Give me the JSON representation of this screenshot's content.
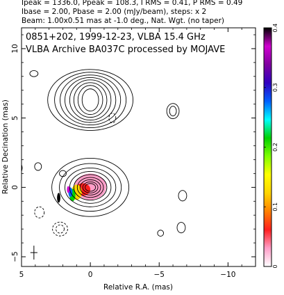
{
  "header": {
    "line1": "Ipeak = 1336.0, Ppeak = 108.3, I RMS = 0.41, P RMS = 0.49",
    "line2": "Ibase = 2.00, Pbase = 2.00 (mJy/beam), steps: x 2",
    "line3": "Beam: 1.00x0.51 mas at -1.0 deg., Nat. Wgt. (no taper)"
  },
  "chart_data": {
    "type": "contour",
    "title": "0851+202, 1999-12-23, VLBA 15.4 GHz",
    "subtitle": "VLBA Archive BA037C processed by MOJAVE",
    "xlabel": "Relative R.A. (mas)",
    "ylabel": "Relative Decination (mas)",
    "xlim": [
      5,
      -12
    ],
    "ylim": [
      -5.7,
      11.5
    ],
    "x_ticks": [
      5,
      0,
      -5,
      -10
    ],
    "y_ticks": [
      -5,
      0,
      5,
      10
    ],
    "x_tick_labels": [
      "5",
      "0",
      "−5",
      "−10"
    ],
    "y_tick_labels": [
      "−5",
      "0",
      "5",
      "10"
    ],
    "colorbar": {
      "range": [
        0,
        0.4
      ],
      "ticks": [
        0,
        0.1,
        0.2,
        0.3,
        0.4
      ],
      "tick_labels": [
        "0",
        "0.1",
        "0.2",
        "0.3",
        "0.4"
      ],
      "stops": [
        "#ffffff",
        "#ff9ec8",
        "#ff1f1f",
        "#ff8000",
        "#ffd400",
        "#ffff00",
        "#7fff00",
        "#00d000",
        "#00ffff",
        "#0060ff",
        "#3000c0",
        "#8000a0",
        "#d000d0",
        "#000000"
      ]
    },
    "components": [
      {
        "name": "core",
        "x": 0.0,
        "y": 0.0,
        "contours": [
          {
            "rx": 0.38,
            "ry": 0.28
          },
          {
            "rx": 0.55,
            "ry": 0.4
          },
          {
            "rx": 0.75,
            "ry": 0.55
          },
          {
            "rx": 0.95,
            "ry": 0.72
          },
          {
            "rx": 1.2,
            "ry": 0.92
          },
          {
            "rx": 1.5,
            "ry": 1.15
          },
          {
            "rx": 1.85,
            "ry": 1.4
          },
          {
            "rx": 2.25,
            "ry": 1.72
          },
          {
            "rx": 2.8,
            "ry": 2.1
          }
        ]
      },
      {
        "name": "northern-feature",
        "x": 0.0,
        "y": 6.3,
        "contours": [
          {
            "rx": 0.6,
            "ry": 0.8
          },
          {
            "rx": 0.9,
            "ry": 1.05
          },
          {
            "rx": 1.2,
            "ry": 1.25
          },
          {
            "rx": 1.5,
            "ry": 1.45
          },
          {
            "rx": 1.85,
            "ry": 1.62
          },
          {
            "rx": 2.2,
            "ry": 1.8
          },
          {
            "rx": 2.6,
            "ry": 2.0
          },
          {
            "rx": 3.1,
            "ry": 2.2
          }
        ]
      }
    ],
    "polarization": [
      {
        "x": 0.0,
        "y": 0.05,
        "rx": 1.15,
        "ry": 0.95,
        "value": 0.02
      },
      {
        "x": 0.15,
        "y": 0.0,
        "rx": 0.75,
        "ry": 0.62,
        "value": 0.04
      },
      {
        "x": 0.55,
        "y": -0.15,
        "rx": 0.55,
        "ry": 0.45,
        "value": 0.06
      },
      {
        "x": 1.0,
        "y": -0.35,
        "rx": 0.38,
        "ry": 0.55,
        "value": 0.13
      },
      {
        "x": 1.3,
        "y": -0.55,
        "rx": 0.22,
        "ry": 0.45,
        "value": 0.2
      },
      {
        "x": 1.45,
        "y": -0.35,
        "rx": 0.15,
        "ry": 0.35,
        "value": 0.27
      },
      {
        "x": 1.6,
        "y": -0.15,
        "rx": 0.1,
        "ry": 0.25,
        "value": 0.36
      },
      {
        "x": 2.3,
        "y": -0.75,
        "rx": 0.12,
        "ry": 0.35,
        "value": 0.4
      }
    ],
    "negative_contours": [
      {
        "x": -1.6,
        "y": 5.0,
        "rx": 0.25,
        "ry": 0.35
      },
      {
        "x": 2.2,
        "y": -3.0,
        "rx": 0.3,
        "ry": 0.3
      },
      {
        "x": 2.2,
        "y": -3.0,
        "rx": 0.55,
        "ry": 0.5
      },
      {
        "x": 3.7,
        "y": -1.8,
        "rx": 0.35,
        "ry": 0.4
      }
    ],
    "isolated_contours": [
      {
        "x": 4.1,
        "y": 8.2,
        "rx": 0.3,
        "ry": 0.22
      },
      {
        "x": -6.0,
        "y": 5.5,
        "rx": 0.25,
        "ry": 0.35
      },
      {
        "x": -6.0,
        "y": 5.5,
        "rx": 0.45,
        "ry": 0.55
      },
      {
        "x": 2.0,
        "y": 1.0,
        "rx": 0.25,
        "ry": 0.22
      },
      {
        "x": 5.4,
        "y": 1.4,
        "rx": 0.45,
        "ry": 0.5
      },
      {
        "x": 3.8,
        "y": 1.5,
        "rx": 0.25,
        "ry": 0.28
      },
      {
        "x": -6.7,
        "y": -0.6,
        "rx": 0.3,
        "ry": 0.38
      },
      {
        "x": -6.6,
        "y": -2.9,
        "rx": 0.3,
        "ry": 0.38
      },
      {
        "x": -5.1,
        "y": -3.3,
        "rx": 0.22,
        "ry": 0.22
      }
    ],
    "beam": {
      "x": 4.1,
      "y": -4.7,
      "major": 1.0,
      "minor": 0.51,
      "pa": -1.0
    }
  }
}
